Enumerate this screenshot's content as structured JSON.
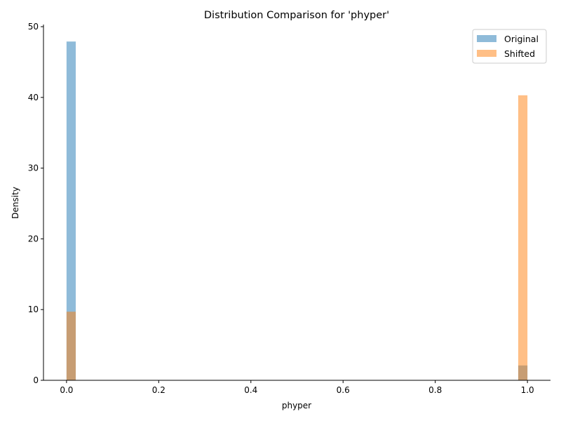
{
  "chart_data": {
    "type": "histogram",
    "title": "Distribution Comparison for 'phyper'",
    "xlabel": "phyper",
    "ylabel": "Density",
    "xlim": [
      -0.05,
      1.05
    ],
    "ylim": [
      0,
      50.3
    ],
    "xticks": [
      0.0,
      0.2,
      0.4,
      0.6,
      0.8,
      1.0
    ],
    "xtick_labels": [
      "0.0",
      "0.2",
      "0.4",
      "0.6",
      "0.8",
      "1.0"
    ],
    "yticks": [
      0,
      10,
      20,
      30,
      40,
      50
    ],
    "ytick_labels": [
      "0",
      "10",
      "20",
      "30",
      "40",
      "50"
    ],
    "bin_width": 0.02,
    "grid": false,
    "legend_position": "top-right",
    "series": [
      {
        "name": "Original",
        "color": "#1f77b4",
        "opacity": 0.5,
        "bars": [
          {
            "x": 0.0,
            "density": 47.9
          },
          {
            "x": 0.98,
            "density": 2.1
          }
        ]
      },
      {
        "name": "Shifted",
        "color": "#ff7f0e",
        "opacity": 0.5,
        "bars": [
          {
            "x": 0.0,
            "density": 9.7
          },
          {
            "x": 0.98,
            "density": 40.3
          }
        ]
      }
    ]
  }
}
